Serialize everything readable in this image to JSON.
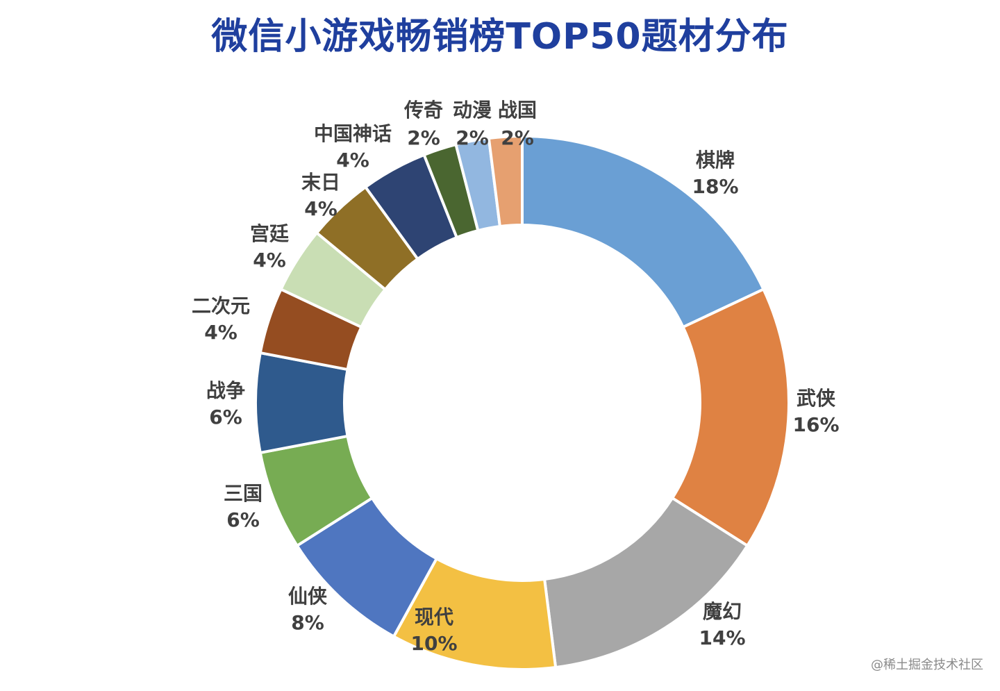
{
  "title": "微信小游戏畅销榜TOP50题材分布",
  "watermark": "@稀土掘金技术社区",
  "chart_data": {
    "type": "pie",
    "style": "donut",
    "title": "微信小游戏畅销榜TOP50题材分布",
    "slices": [
      {
        "label": "棋牌",
        "value": 18,
        "display": "18%",
        "color": "#6a9fd4"
      },
      {
        "label": "武侠",
        "value": 16,
        "display": "16%",
        "color": "#df8243"
      },
      {
        "label": "魔幻",
        "value": 14,
        "display": "14%",
        "color": "#a7a7a7"
      },
      {
        "label": "现代",
        "value": 10,
        "display": "10%",
        "color": "#f3c043"
      },
      {
        "label": "仙侠",
        "value": 8,
        "display": "8%",
        "color": "#4f76c0"
      },
      {
        "label": "三国",
        "value": 6,
        "display": "6%",
        "color": "#77ac53"
      },
      {
        "label": "战争",
        "value": 6,
        "display": "6%",
        "color": "#2f5a8d"
      },
      {
        "label": "二次元",
        "value": 4,
        "display": "4%",
        "color": "#954d21"
      },
      {
        "label": "宫廷",
        "value": 4,
        "display": "4%",
        "color": "#c9deb4"
      },
      {
        "label": "末日",
        "value": 4,
        "display": "4%",
        "color": "#8f6f26"
      },
      {
        "label": "中国神话",
        "value": 4,
        "display": "4%",
        "color": "#2e4473"
      },
      {
        "label": "传奇",
        "value": 2,
        "display": "2%",
        "color": "#4a6630"
      },
      {
        "label": "动漫",
        "value": 2,
        "display": "2%",
        "color": "#92b7e0"
      },
      {
        "label": "战国",
        "value": 2,
        "display": "2%",
        "color": "#e6a070"
      }
    ],
    "legend": "none"
  }
}
